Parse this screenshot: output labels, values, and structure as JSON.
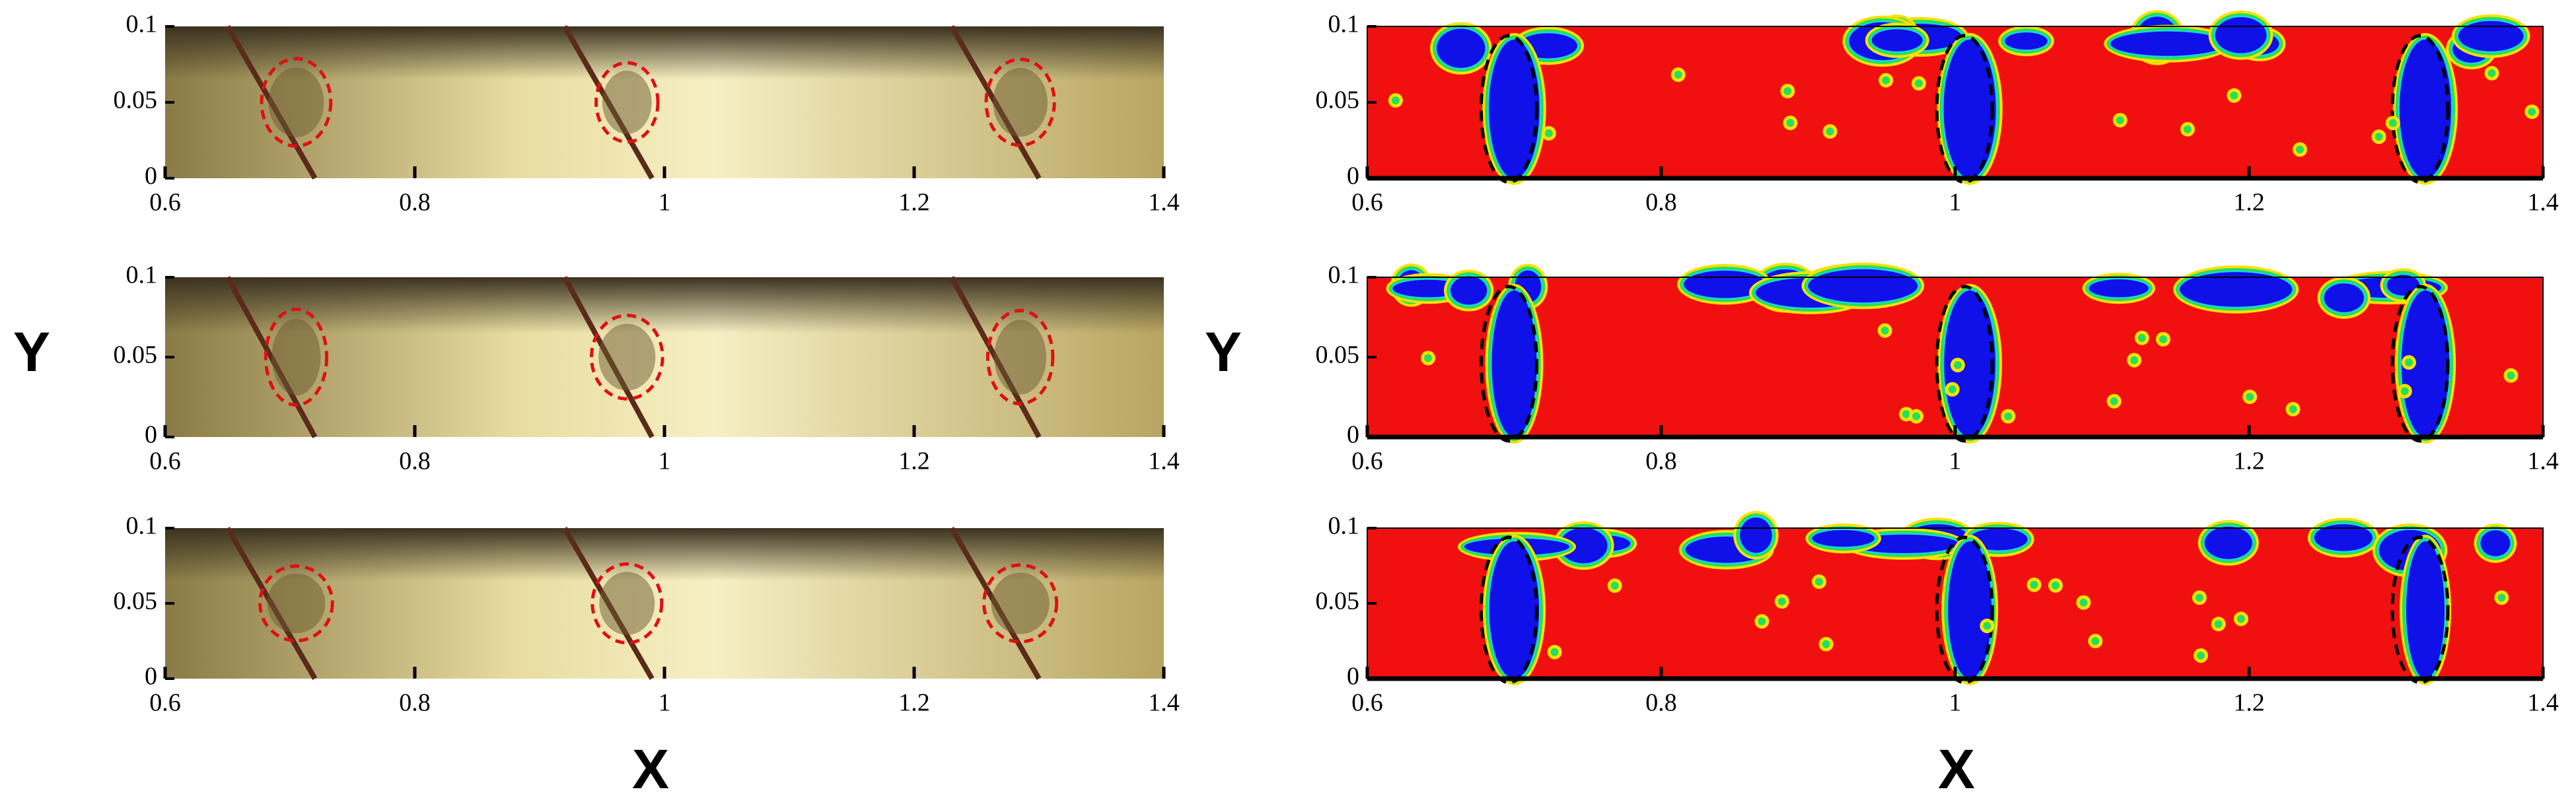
{
  "figure": {
    "experiment": {
      "x_label": "X",
      "y_label": "Y"
    },
    "simulation": {
      "x_label": "X",
      "y_label": "Y"
    },
    "axes": {
      "xlim": [
        0.6,
        1.4
      ],
      "ylim": [
        0,
        0.1
      ],
      "xticks": [
        0.6,
        0.8,
        1,
        1.2,
        1.4
      ],
      "yticks": [
        0,
        0.05,
        0.1
      ]
    }
  }
}
